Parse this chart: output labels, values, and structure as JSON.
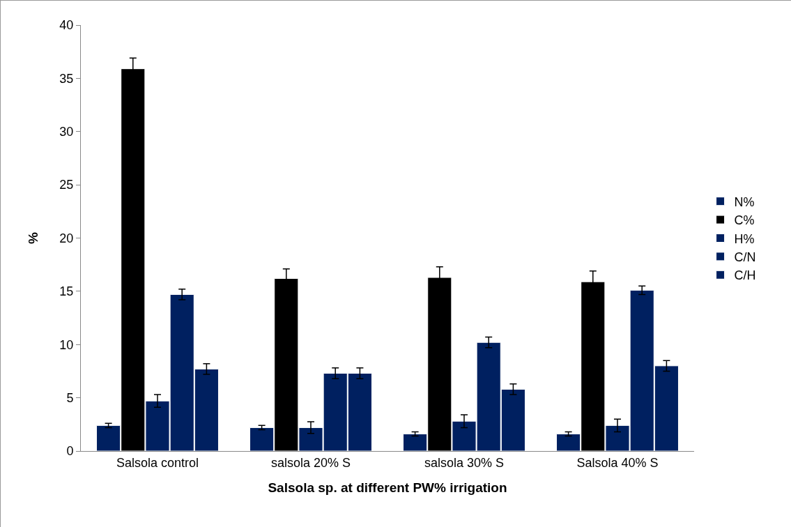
{
  "chart_data": {
    "type": "bar",
    "xlabel": "Salsola sp. at different PW% irrigation",
    "ylabel": "%",
    "categories": [
      "Salsola control",
      "salsola 20% S",
      "salsola 30% S",
      "Salsola 40% S"
    ],
    "series": [
      {
        "name": "N%",
        "color": "#002060",
        "values": [
          2.4,
          2.2,
          1.6,
          1.6
        ],
        "errors": [
          0.2,
          0.2,
          0.2,
          0.2
        ]
      },
      {
        "name": "C%",
        "color": "#000000",
        "values": [
          35.9,
          16.2,
          16.3,
          15.9
        ],
        "errors": [
          1,
          0.9,
          1,
          1
        ]
      },
      {
        "name": "H%",
        "color": "#002060",
        "values": [
          4.7,
          2.2,
          2.8,
          2.4
        ],
        "errors": [
          0.6,
          0.55,
          0.6,
          0.6
        ]
      },
      {
        "name": "C/N",
        "color": "#002060",
        "values": [
          14.7,
          7.3,
          10.2,
          15.1
        ],
        "errors": [
          0.5,
          0.5,
          0.5,
          0.4
        ]
      },
      {
        "name": "C/H",
        "color": "#002060",
        "values": [
          7.7,
          7.3,
          5.8,
          8.0
        ],
        "errors": [
          0.5,
          0.5,
          0.5,
          0.5
        ]
      }
    ],
    "ylim": [
      0,
      40
    ],
    "yticks": [
      0,
      5,
      10,
      15,
      20,
      25,
      30,
      35,
      40
    ],
    "grid": false,
    "legend": "right"
  }
}
